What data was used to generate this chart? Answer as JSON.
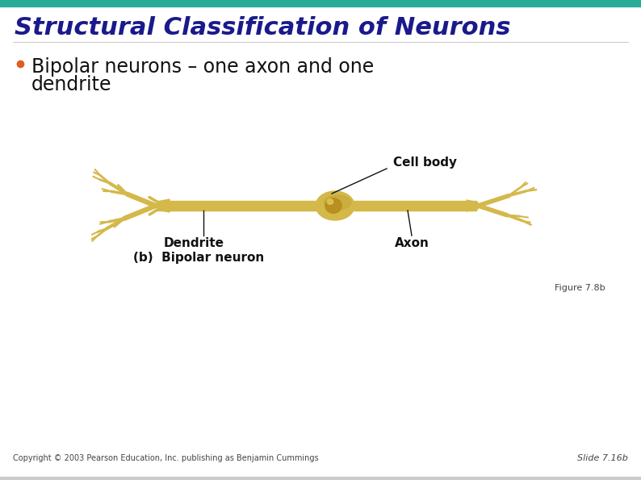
{
  "title": "Structural Classification of Neurons",
  "title_color": "#1a1a8c",
  "title_fontsize": 22,
  "bullet_text_line1": "Bipolar neurons – one axon and one",
  "bullet_text_line2": "dendrite",
  "bullet_color": "#e05c20",
  "text_color": "#111111",
  "body_fontsize": 17,
  "header_bar_color": "#2aaa99",
  "bg_color": "#ffffff",
  "figure_label": "Figure 7.8b",
  "slide_label": "Slide 7.16b",
  "copyright_text": "Copyright © 2003 Pearson Education, Inc. publishing as Benjamin Cummings",
  "neuron_color": "#d4b84a",
  "neuron_shadow": "#b89830",
  "label_dendrite": "Dendrite",
  "label_axon": "Axon",
  "label_cell_body": "Cell body",
  "label_bipolar": "(b)  Bipolar neuron",
  "small_fontsize": 7,
  "caption_fontsize": 8,
  "label_fontsize": 11
}
